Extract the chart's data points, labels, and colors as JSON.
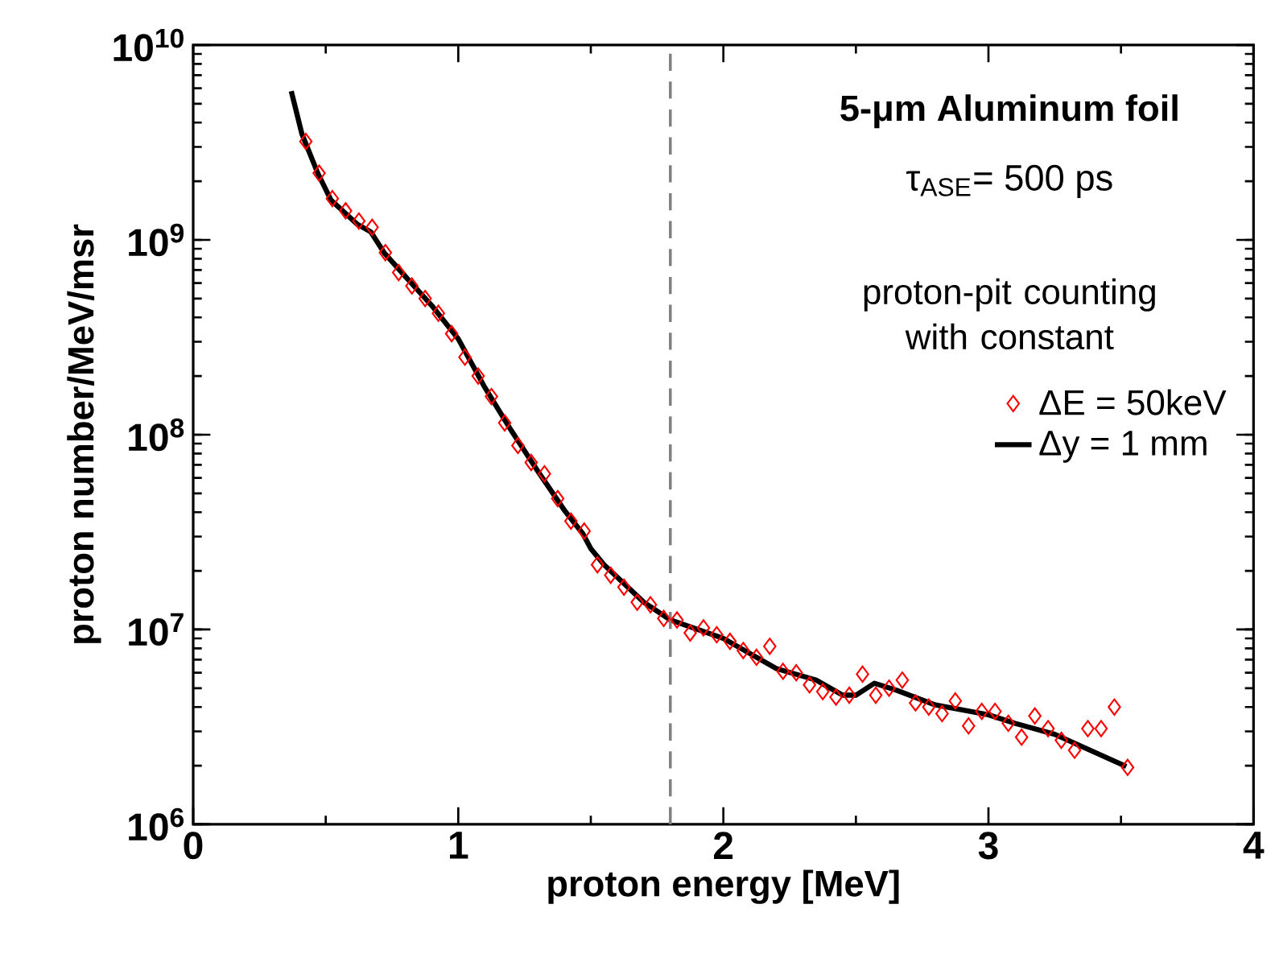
{
  "chart_data": {
    "type": "scatter",
    "title": "5-μm Aluminum foil",
    "annotations": [
      "τ$_{ASE}$= 500 ps"
    ],
    "xlabel": "proton energy [MeV]",
    "ylabel": "proton number/MeV/msr",
    "legend_title": "proton-pit counting with constant",
    "log": "y",
    "legend": "top right",
    "xlim": [
      0,
      4
    ],
    "xticks": [
      0,
      1,
      2,
      3,
      4
    ],
    "ylim": [
      1000000,
      10000000000
    ],
    "yticks": [
      {
        "value": 1000000,
        "label": "10$^{6}$"
      },
      {
        "value": 10000000,
        "label": "10$^{7}$"
      },
      {
        "value": 100000000,
        "label": "10$^{8}$"
      },
      {
        "value": 1000000000,
        "label": "10$^{9}$"
      },
      {
        "value": 10000000000,
        "label": "10$^{10}$"
      }
    ],
    "ref_lines": [
      {
        "axis": "x",
        "value": 1.8,
        "color": "#808080",
        "line_style": "dashed"
      }
    ],
    "series": [
      {
        "name": "ΔE = 50keV",
        "type": "scatter",
        "marker": "diamond",
        "color": "#ff0000",
        "x": [
          0.425,
          0.475,
          0.525,
          0.575,
          0.625,
          0.675,
          0.725,
          0.775,
          0.825,
          0.875,
          0.925,
          0.975,
          1.025,
          1.075,
          1.125,
          1.175,
          1.225,
          1.275,
          1.325,
          1.375,
          1.425,
          1.475,
          1.525,
          1.575,
          1.625,
          1.675,
          1.725,
          1.775,
          1.825,
          1.875,
          1.925,
          1.975,
          2.025,
          2.075,
          2.125,
          2.175,
          2.225,
          2.275,
          2.325,
          2.375,
          2.425,
          2.475,
          2.525,
          2.575,
          2.625,
          2.675,
          2.725,
          2.775,
          2.825,
          2.875,
          2.925,
          2.975,
          3.025,
          3.075,
          3.125,
          3.175,
          3.225,
          3.275,
          3.325,
          3.375,
          3.425,
          3.475,
          3.525
        ],
        "values": [
          3200000000.0,
          2200000000.0,
          1630000000.0,
          1410000000.0,
          1250000000.0,
          1160000000.0,
          860000000.0,
          680000000.0,
          580000000.0,
          500000000.0,
          420000000.0,
          330000000.0,
          250000000.0,
          200000000.0,
          157000000.0,
          115000000.0,
          88000000.0,
          72000000.0,
          63000000.0,
          47000000.0,
          36000000.0,
          32000000.0,
          21500000.0,
          19000000.0,
          16500000.0,
          13800000.0,
          13400000.0,
          11400000.0,
          11200000.0,
          9600000.0,
          10200000.0,
          9400000.0,
          8700000.0,
          7800000.0,
          7200000.0,
          8200000.0,
          6100000.0,
          6000000.0,
          5200000.0,
          4800000.0,
          4500000.0,
          4600000.0,
          5900000.0,
          4600000.0,
          5000000.0,
          5500000.0,
          4200000.0,
          4000000.0,
          3700000.0,
          4300000.0,
          3200000.0,
          3800000.0,
          3800000.0,
          3300000.0,
          2800000.0,
          3600000.0,
          3100000.0,
          2700000.0,
          2400000.0,
          3100000.0,
          3100000.0,
          4000000.0,
          1960000.0
        ]
      },
      {
        "name": "Δy  = 1 mm",
        "type": "line",
        "line_style": "solid",
        "color": "#000000",
        "x": [
          0.37,
          0.41,
          0.47,
          0.52,
          0.62,
          0.67,
          0.72,
          0.8,
          0.9,
          1.0,
          1.1,
          1.2,
          1.3,
          1.4,
          1.47,
          1.5,
          1.55,
          1.7,
          1.8,
          2.0,
          2.2,
          2.35,
          2.45,
          2.5,
          2.57,
          2.65,
          2.8,
          3.0,
          3.1,
          3.25,
          3.52
        ],
        "values": [
          5800000000.0,
          3500000000.0,
          2200000000.0,
          1600000000.0,
          1200000000.0,
          1100000000.0,
          860000000.0,
          650000000.0,
          460000000.0,
          310000000.0,
          175000000.0,
          105000000.0,
          65000000.0,
          41000000.0,
          31000000.0,
          26000000.0,
          21500000.0,
          13800000.0,
          11200000.0,
          9000000.0,
          6300000.0,
          5500000.0,
          4600000.0,
          4600000.0,
          5300000.0,
          4900000.0,
          4100000.0,
          3650000.0,
          3300000.0,
          2900000.0,
          1980000.0
        ]
      }
    ]
  }
}
